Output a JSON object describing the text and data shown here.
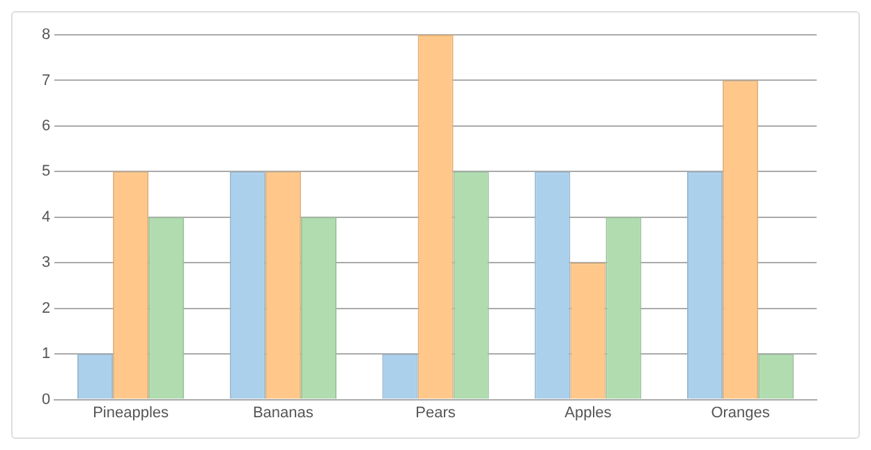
{
  "chart_data": {
    "type": "bar",
    "categories": [
      "Pineapples",
      "Bananas",
      "Pears",
      "Apples",
      "Oranges"
    ],
    "series": [
      {
        "color": "#abd0ec",
        "values": [
          1,
          5,
          1,
          5,
          5
        ]
      },
      {
        "color": "#ffc88a",
        "values": [
          5,
          5,
          8,
          3,
          7
        ]
      },
      {
        "color": "#b0dcb0",
        "values": [
          4,
          4,
          5,
          4,
          1
        ]
      }
    ],
    "ylim": [
      0,
      8
    ],
    "yticks": [
      0,
      1,
      2,
      3,
      4,
      5,
      6,
      7,
      8
    ],
    "grid": "y",
    "legend": false
  }
}
